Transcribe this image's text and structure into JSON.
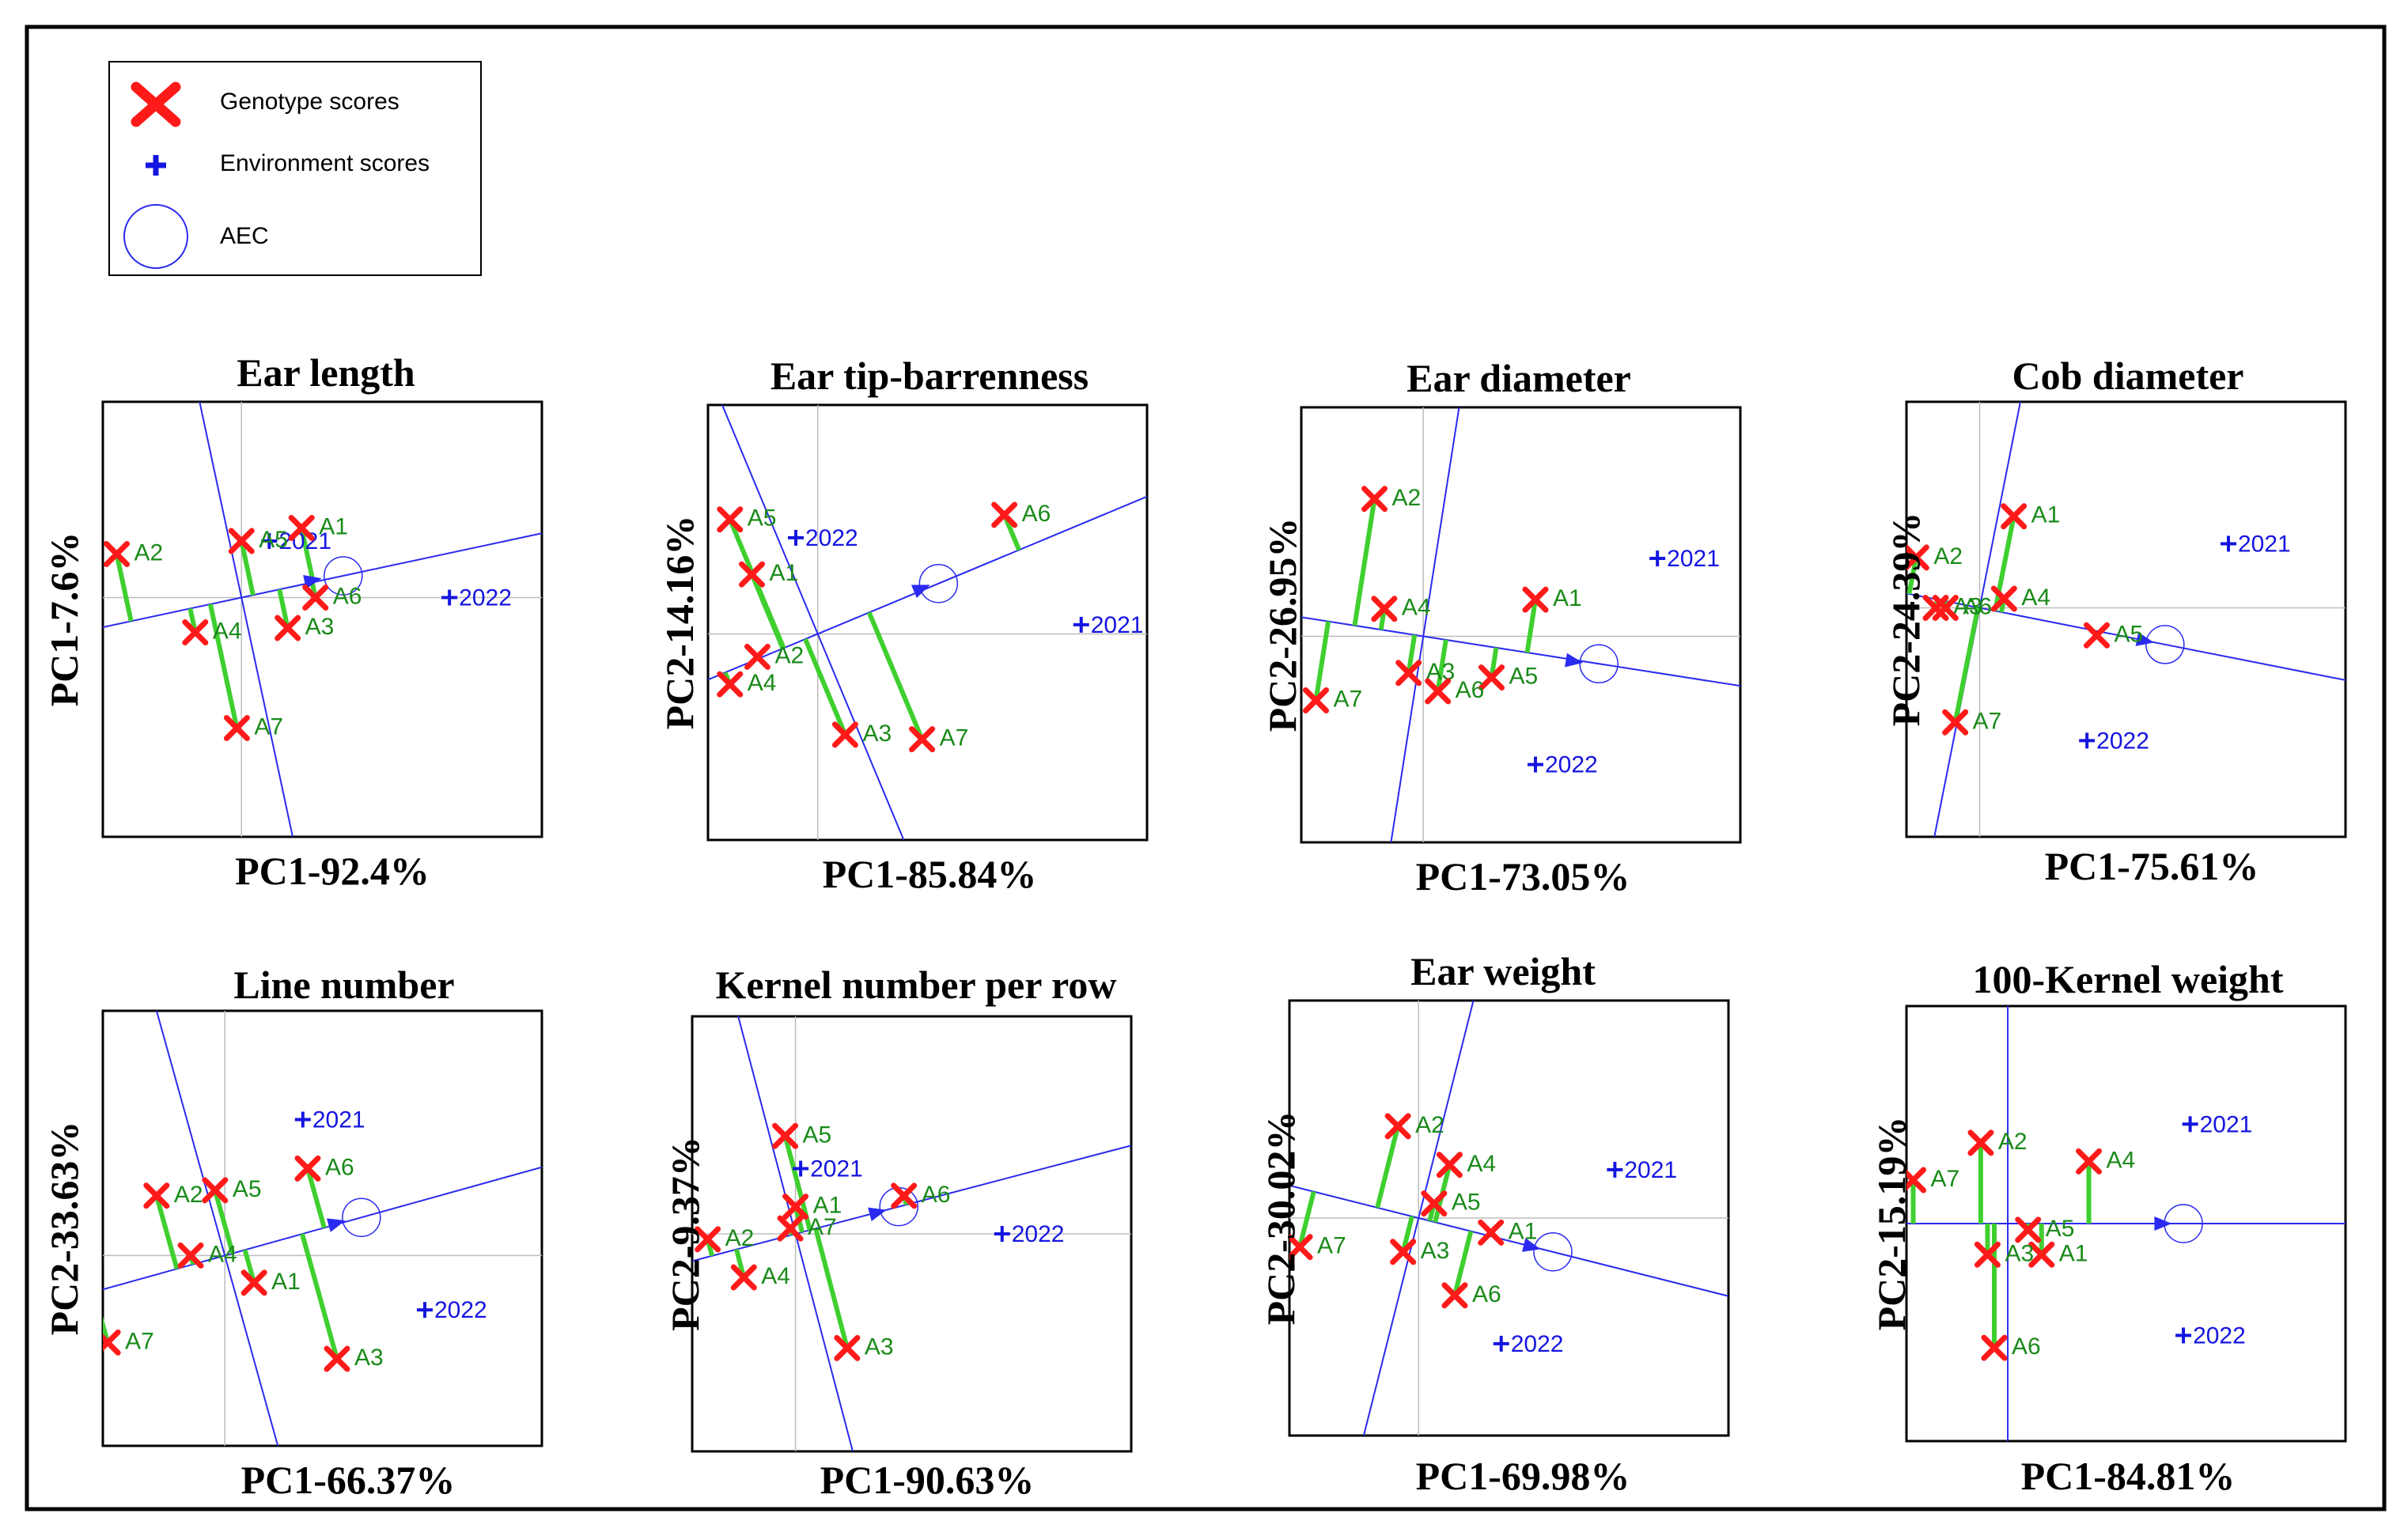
{
  "legend": {
    "genotype": "Genotype scores",
    "environment": "Environment scores",
    "aec": "AEC"
  },
  "colors": {
    "genotype": "#ff1a1a",
    "genotype_label": "#1a8a1a",
    "environment": "#1515e0",
    "projection": "#3fcf2f",
    "aec_line": "#2a2af0",
    "grid": "#bdbdbd"
  },
  "chart_data": [
    {
      "type": "scatter",
      "title": "Ear length",
      "xlabel": "PC1-92.4%",
      "ylabel": "PC1-7.6%",
      "xlim": [
        -3.0,
        6.5
      ],
      "ylim": [
        -5.5,
        4.5
      ],
      "aec": {
        "x": 2.2,
        "y": 0.5,
        "arrow": [
          1.55,
          0.4
        ]
      },
      "genotypes": [
        {
          "name": "A1",
          "x": 1.3,
          "y": 1.6
        },
        {
          "name": "A2",
          "x": -2.7,
          "y": 1.0
        },
        {
          "name": "A3",
          "x": 1.0,
          "y": -0.7
        },
        {
          "name": "A4",
          "x": -1.0,
          "y": -0.8
        },
        {
          "name": "A5",
          "x": 0.0,
          "y": 1.3
        },
        {
          "name": "A6",
          "x": 1.6,
          "y": 0.0
        },
        {
          "name": "A7",
          "x": -0.1,
          "y": -3.0
        }
      ],
      "environments": [
        {
          "name": "2021",
          "x": 0.6,
          "y": 1.3
        },
        {
          "name": "2022",
          "x": 4.5,
          "y": 0.0
        }
      ]
    },
    {
      "type": "scatter",
      "title": "Ear tip-barrenness",
      "xlabel": "PC1-85.84%",
      "ylabel": "PC2-14.16%",
      "xlim": [
        -2.0,
        6.0
      ],
      "ylim": [
        -4.5,
        5.0
      ],
      "aec": {
        "x": 2.2,
        "y": 1.1,
        "arrow": [
          1.9,
          1.0
        ]
      },
      "genotypes": [
        {
          "name": "A1",
          "x": -1.2,
          "y": 1.3
        },
        {
          "name": "A2",
          "x": -1.1,
          "y": -0.5
        },
        {
          "name": "A3",
          "x": 0.5,
          "y": -2.2
        },
        {
          "name": "A4",
          "x": -1.6,
          "y": -1.1
        },
        {
          "name": "A5",
          "x": -1.6,
          "y": 2.5
        },
        {
          "name": "A6",
          "x": 3.4,
          "y": 2.6
        },
        {
          "name": "A7",
          "x": 1.9,
          "y": -2.3
        }
      ],
      "environments": [
        {
          "name": "2021",
          "x": 4.8,
          "y": 0.2
        },
        {
          "name": "2022",
          "x": -0.4,
          "y": 2.1
        }
      ]
    },
    {
      "type": "scatter",
      "title": "Ear diameter",
      "xlabel": "PC1-73.05%",
      "ylabel": "PC2-26.95%",
      "xlim": [
        -2.5,
        6.5
      ],
      "ylim": [
        -4.5,
        5.0
      ],
      "aec": {
        "x": 3.6,
        "y": -0.6,
        "arrow": [
          3.1,
          -0.55
        ]
      },
      "genotypes": [
        {
          "name": "A1",
          "x": 2.3,
          "y": 0.8
        },
        {
          "name": "A2",
          "x": -1.0,
          "y": 3.0
        },
        {
          "name": "A3",
          "x": -0.3,
          "y": -0.8
        },
        {
          "name": "A4",
          "x": -0.8,
          "y": 0.6
        },
        {
          "name": "A5",
          "x": 1.4,
          "y": -0.9
        },
        {
          "name": "A6",
          "x": 0.3,
          "y": -1.2
        },
        {
          "name": "A7",
          "x": -2.2,
          "y": -1.4
        }
      ],
      "environments": [
        {
          "name": "2021",
          "x": 4.8,
          "y": 1.7
        },
        {
          "name": "2022",
          "x": 2.3,
          "y": -2.8
        }
      ]
    },
    {
      "type": "scatter",
      "title": "Cob diameter",
      "xlabel": "PC1-75.61%",
      "ylabel": "PC2-24.39%",
      "xlim": [
        -1.5,
        7.5
      ],
      "ylim": [
        -5.0,
        4.5
      ],
      "aec": {
        "x": 3.8,
        "y": -0.8,
        "arrow": [
          3.4,
          -0.72
        ]
      },
      "genotypes": [
        {
          "name": "A1",
          "x": 0.7,
          "y": 2.0
        },
        {
          "name": "A2",
          "x": -1.3,
          "y": 1.1
        },
        {
          "name": "A3",
          "x": -0.9,
          "y": 0.0
        },
        {
          "name": "A4",
          "x": 0.5,
          "y": 0.2
        },
        {
          "name": "A5",
          "x": 2.4,
          "y": -0.6
        },
        {
          "name": "A6",
          "x": -0.7,
          "y": 0.0
        },
        {
          "name": "A7",
          "x": -0.5,
          "y": -2.5
        }
      ],
      "environments": [
        {
          "name": "2021",
          "x": 5.1,
          "y": 1.4
        },
        {
          "name": "2022",
          "x": 2.2,
          "y": -2.9
        }
      ]
    },
    {
      "type": "scatter",
      "title": "Line number",
      "xlabel": "PC1-66.37%",
      "ylabel": "PC2-33.63%",
      "xlim": [
        -2.5,
        6.5
      ],
      "ylim": [
        -3.5,
        4.5
      ],
      "aec": {
        "x": 2.8,
        "y": 0.7,
        "arrow": [
          2.3,
          0.6
        ]
      },
      "genotypes": [
        {
          "name": "A1",
          "x": 0.6,
          "y": -0.5
        },
        {
          "name": "A2",
          "x": -1.4,
          "y": 1.1
        },
        {
          "name": "A3",
          "x": 2.3,
          "y": -1.9
        },
        {
          "name": "A4",
          "x": -0.7,
          "y": 0.0
        },
        {
          "name": "A5",
          "x": -0.2,
          "y": 1.2
        },
        {
          "name": "A6",
          "x": 1.7,
          "y": 1.6
        },
        {
          "name": "A7",
          "x": -2.4,
          "y": -1.6
        }
      ],
      "environments": [
        {
          "name": "2021",
          "x": 1.6,
          "y": 2.5
        },
        {
          "name": "2022",
          "x": 4.1,
          "y": -1.0
        }
      ]
    },
    {
      "type": "scatter",
      "title": "Kernel number per row",
      "xlabel": "PC1-90.63%",
      "ylabel": "PC2-9.37%",
      "xlim": [
        -2.0,
        6.5
      ],
      "ylim": [
        -4.0,
        4.0
      ],
      "aec": {
        "x": 2.0,
        "y": 0.5,
        "arrow": [
          1.6,
          0.4
        ]
      },
      "genotypes": [
        {
          "name": "A1",
          "x": 0.0,
          "y": 0.5
        },
        {
          "name": "A2",
          "x": -1.7,
          "y": -0.1
        },
        {
          "name": "A3",
          "x": 1.0,
          "y": -2.1
        },
        {
          "name": "A4",
          "x": -1.0,
          "y": -0.8
        },
        {
          "name": "A5",
          "x": -0.2,
          "y": 1.8
        },
        {
          "name": "A6",
          "x": 2.1,
          "y": 0.7
        },
        {
          "name": "A7",
          "x": -0.1,
          "y": 0.1
        }
      ],
      "environments": [
        {
          "name": "2021",
          "x": 0.1,
          "y": 1.2
        },
        {
          "name": "2022",
          "x": 4.0,
          "y": 0.0
        }
      ]
    },
    {
      "type": "scatter",
      "title": "Ear weight",
      "xlabel": "PC1-69.98%",
      "ylabel": "PC2-30.02%",
      "xlim": [
        -2.5,
        6.0
      ],
      "ylim": [
        -4.5,
        4.5
      ],
      "aec": {
        "x": 2.6,
        "y": -0.7,
        "arrow": [
          2.2,
          -0.6
        ]
      },
      "genotypes": [
        {
          "name": "A1",
          "x": 1.4,
          "y": -0.3
        },
        {
          "name": "A2",
          "x": -0.4,
          "y": 1.9
        },
        {
          "name": "A3",
          "x": -0.3,
          "y": -0.7
        },
        {
          "name": "A4",
          "x": 0.6,
          "y": 1.1
        },
        {
          "name": "A5",
          "x": 0.3,
          "y": 0.3
        },
        {
          "name": "A6",
          "x": 0.7,
          "y": -1.6
        },
        {
          "name": "A7",
          "x": -2.3,
          "y": -0.6
        }
      ],
      "environments": [
        {
          "name": "2021",
          "x": 3.8,
          "y": 1.0
        },
        {
          "name": "2022",
          "x": 1.6,
          "y": -2.6
        }
      ]
    },
    {
      "type": "scatter",
      "title": "100-Kernel weight",
      "xlabel": "PC1-84.81%",
      "ylabel": "PC2-15.19%",
      "xlim": [
        -1.5,
        5.0
      ],
      "ylim": [
        -3.5,
        3.5
      ],
      "aec": {
        "x": 2.6,
        "y": 0.0,
        "arrow": [
          2.3,
          0.0
        ]
      },
      "genotypes": [
        {
          "name": "A1",
          "x": 0.5,
          "y": -0.5
        },
        {
          "name": "A2",
          "x": -0.4,
          "y": 1.3
        },
        {
          "name": "A3",
          "x": -0.3,
          "y": -0.5
        },
        {
          "name": "A4",
          "x": 1.2,
          "y": 1.0
        },
        {
          "name": "A5",
          "x": 0.3,
          "y": -0.1
        },
        {
          "name": "A6",
          "x": -0.2,
          "y": -2.0
        },
        {
          "name": "A7",
          "x": -1.4,
          "y": 0.7
        }
      ],
      "environments": [
        {
          "name": "2021",
          "x": 2.7,
          "y": 1.6
        },
        {
          "name": "2022",
          "x": 2.6,
          "y": -1.8
        }
      ]
    }
  ]
}
